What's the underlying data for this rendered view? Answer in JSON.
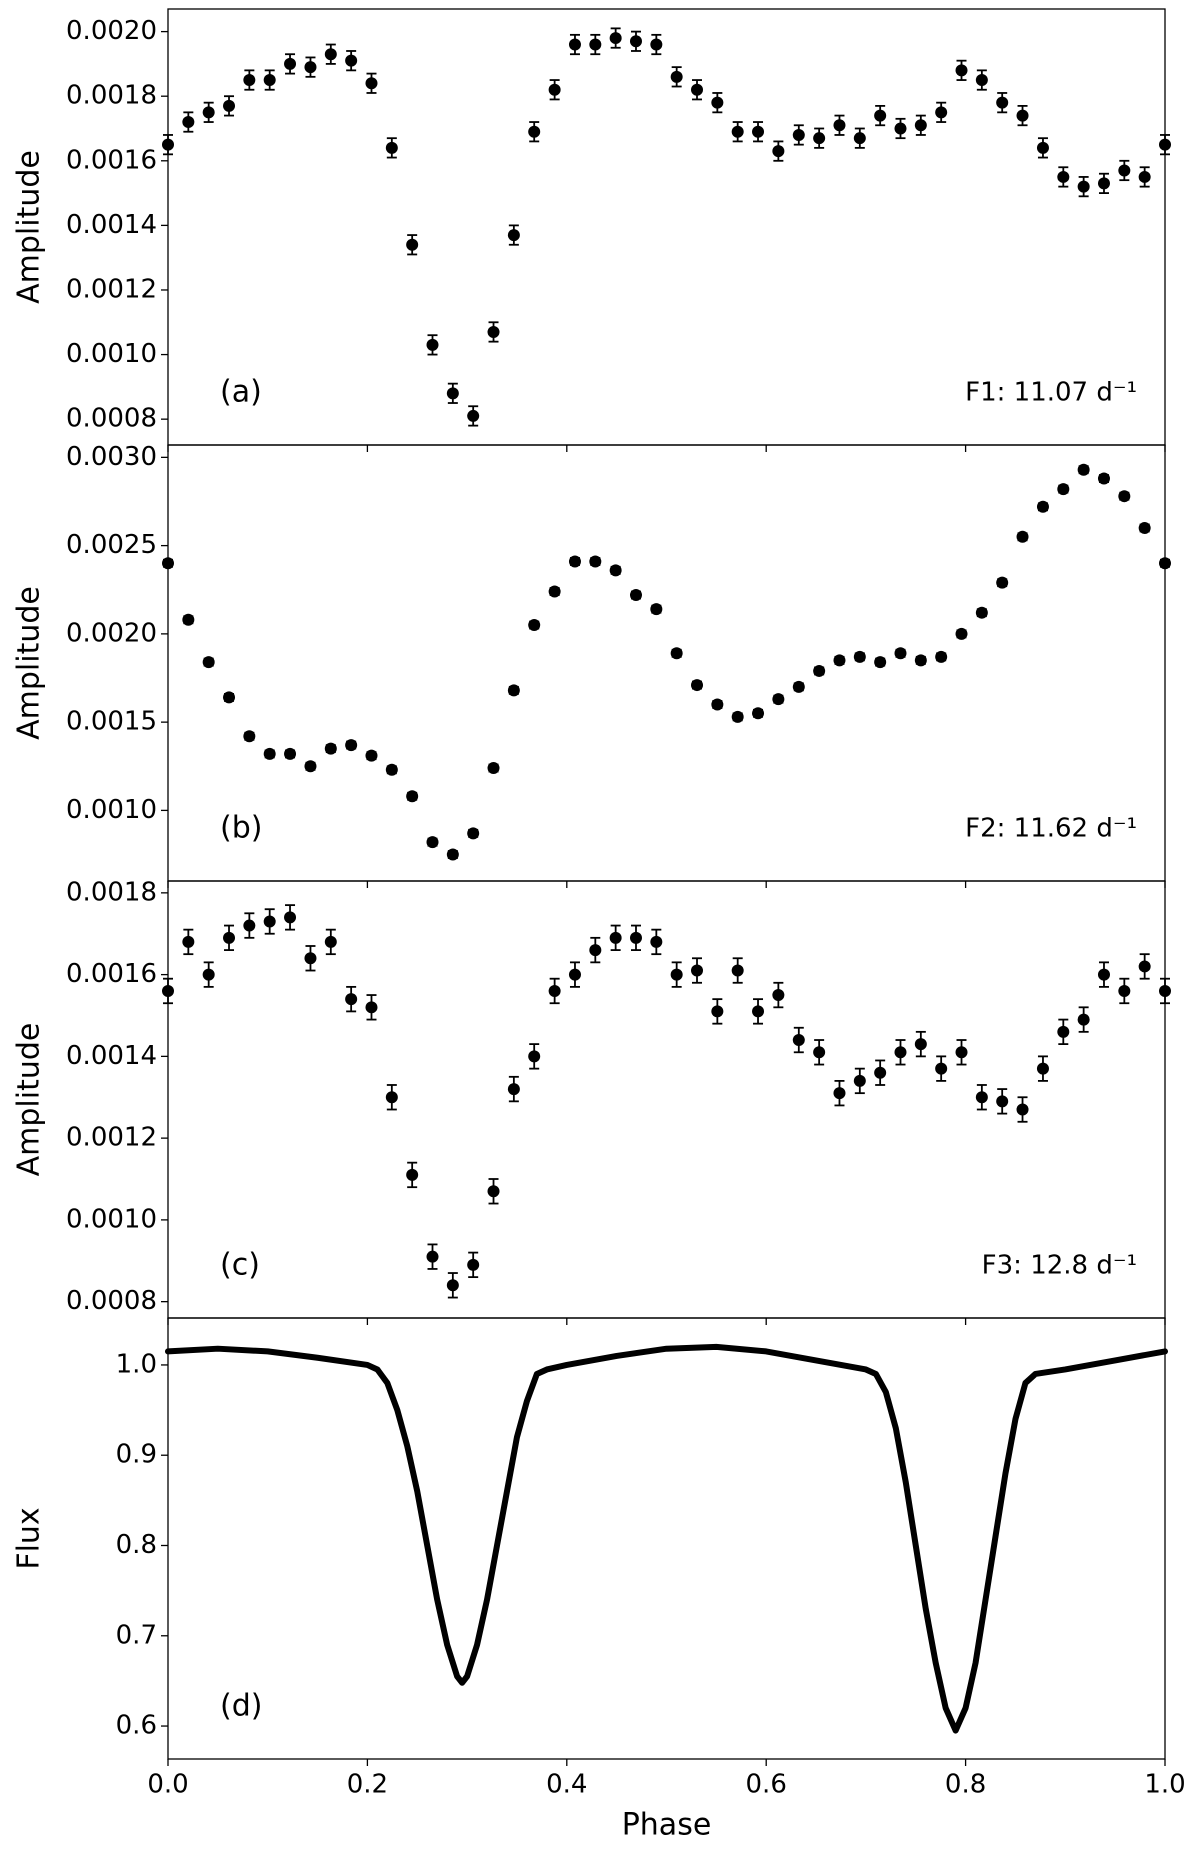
{
  "chart_data": [
    {
      "type": "scatter",
      "y_label": "Amplitude",
      "annotation": "(a)",
      "note": "F1: 11.07 d⁻¹",
      "color": "#000000",
      "x": [
        0,
        0.0204,
        0.0408,
        0.0612,
        0.0816,
        0.102,
        0.1224,
        0.1429,
        0.1633,
        0.1837,
        0.2041,
        0.2245,
        0.2449,
        0.2653,
        0.2857,
        0.3061,
        0.3265,
        0.3469,
        0.3673,
        0.3878,
        0.4082,
        0.4286,
        0.449,
        0.4694,
        0.4898,
        0.5102,
        0.5306,
        0.551,
        0.5714,
        0.5918,
        0.6122,
        0.6327,
        0.6531,
        0.6735,
        0.6939,
        0.7143,
        0.7347,
        0.7551,
        0.7755,
        0.7959,
        0.8163,
        0.8367,
        0.8571,
        0.8776,
        0.898,
        0.9184,
        0.9388,
        0.9592,
        0.9796,
        1
      ],
      "values": [
        0.00165,
        0.00172,
        0.00175,
        0.00177,
        0.00185,
        0.00185,
        0.0019,
        0.00189,
        0.00193,
        0.00191,
        0.00184,
        0.00164,
        0.00134,
        0.00103,
        0.00088,
        0.00081,
        0.00107,
        0.00137,
        0.00169,
        0.00182,
        0.00196,
        0.00196,
        0.00198,
        0.00197,
        0.00196,
        0.00186,
        0.00182,
        0.00178,
        0.00169,
        0.00169,
        0.00163,
        0.00168,
        0.00167,
        0.00171,
        0.00167,
        0.00174,
        0.0017,
        0.00171,
        0.00175,
        0.00188,
        0.00185,
        0.00178,
        0.00174,
        0.00164,
        0.00155,
        0.00152,
        0.00153,
        0.00157,
        0.00155,
        0.00165
      ],
      "error": 3e-05,
      "xlim": [
        0,
        1
      ],
      "xticks": [
        0,
        0.2,
        0.4,
        0.6,
        0.8,
        1
      ],
      "ylim": [
        0.00072,
        0.00207
      ],
      "yticks": [
        0.0008,
        {
          "value": 0.001,
          "label": "0.0010"
        },
        0.0012,
        0.0014,
        0.0016,
        0.0018,
        {
          "value": 0.002,
          "label": "0.0020"
        }
      ]
    },
    {
      "type": "scatter",
      "y_label": "Amplitude",
      "annotation": "(b)",
      "note": "F2: 11.62 d⁻¹",
      "color": "#000000",
      "x": [
        0,
        0.0204,
        0.0408,
        0.0612,
        0.0816,
        0.102,
        0.1224,
        0.1429,
        0.1633,
        0.1837,
        0.2041,
        0.2245,
        0.2449,
        0.2653,
        0.2857,
        0.3061,
        0.3265,
        0.3469,
        0.3673,
        0.3878,
        0.4082,
        0.4286,
        0.449,
        0.4694,
        0.4898,
        0.5102,
        0.5306,
        0.551,
        0.5714,
        0.5918,
        0.6122,
        0.6327,
        0.6531,
        0.6735,
        0.6939,
        0.7143,
        0.7347,
        0.7551,
        0.7755,
        0.7959,
        0.8163,
        0.8367,
        0.8571,
        0.8776,
        0.898,
        0.9184,
        0.9388,
        0.9592,
        0.9796,
        1
      ],
      "values": [
        0.0024,
        0.00208,
        0.00184,
        0.00164,
        0.00142,
        0.00132,
        0.00132,
        0.00125,
        0.00135,
        0.00137,
        0.00131,
        0.00123,
        0.00108,
        0.00082,
        0.00075,
        0.00087,
        0.00124,
        0.00168,
        0.00205,
        0.00224,
        0.00241,
        0.00241,
        0.00236,
        0.00222,
        0.00214,
        0.00189,
        0.00171,
        0.0016,
        0.00153,
        0.00155,
        0.00163,
        0.0017,
        0.00179,
        0.00185,
        0.00187,
        0.00184,
        0.00189,
        0.00185,
        0.00187,
        0.002,
        0.00212,
        0.00229,
        0.00255,
        0.00272,
        0.00282,
        0.00293,
        0.00288,
        0.00278,
        0.0026,
        0.0024
      ],
      "error": 2e-05,
      "xlim": [
        0,
        1
      ],
      "xticks": [
        0,
        0.2,
        0.4,
        0.6,
        0.8,
        1
      ],
      "ylim": [
        0.0006,
        0.00307
      ],
      "yticks": [
        {
          "value": 0.001,
          "label": "0.0010"
        },
        0.0015,
        {
          "value": 0.002,
          "label": "0.0020"
        },
        0.0025,
        {
          "value": 0.003,
          "label": "0.0030"
        }
      ]
    },
    {
      "type": "scatter",
      "y_label": "Amplitude",
      "annotation": "(c)",
      "note": "F3: 12.8 d⁻¹",
      "color": "#000000",
      "x": [
        0,
        0.0204,
        0.0408,
        0.0612,
        0.0816,
        0.102,
        0.1224,
        0.1429,
        0.1633,
        0.1837,
        0.2041,
        0.2245,
        0.2449,
        0.2653,
        0.2857,
        0.3061,
        0.3265,
        0.3469,
        0.3673,
        0.3878,
        0.4082,
        0.4286,
        0.449,
        0.4694,
        0.4898,
        0.5102,
        0.5306,
        0.551,
        0.5714,
        0.5918,
        0.6122,
        0.6327,
        0.6531,
        0.6735,
        0.6939,
        0.7143,
        0.7347,
        0.7551,
        0.7755,
        0.7959,
        0.8163,
        0.8367,
        0.8571,
        0.8776,
        0.898,
        0.9184,
        0.9388,
        0.9592,
        0.9796,
        1
      ],
      "values": [
        0.00156,
        0.00168,
        0.0016,
        0.00169,
        0.00172,
        0.00173,
        0.00174,
        0.00164,
        0.00168,
        0.00154,
        0.00152,
        0.0013,
        0.00111,
        0.00091,
        0.00084,
        0.00089,
        0.00107,
        0.00132,
        0.0014,
        0.00156,
        0.0016,
        0.00166,
        0.00169,
        0.00169,
        0.00168,
        0.0016,
        0.00161,
        0.00151,
        0.00161,
        0.00151,
        0.00155,
        0.00144,
        0.00141,
        0.00131,
        0.00134,
        0.00136,
        0.00141,
        0.00143,
        0.00137,
        0.00141,
        0.0013,
        0.00129,
        0.00127,
        0.00137,
        0.00146,
        0.00149,
        0.0016,
        0.00156,
        0.00162,
        0.00156
      ],
      "error": 3e-05,
      "xlim": [
        0,
        1
      ],
      "xticks": [
        0,
        0.2,
        0.4,
        0.6,
        0.8,
        1
      ],
      "ylim": [
        0.00076,
        0.001829
      ],
      "yticks": [
        0.0008,
        {
          "value": 0.001,
          "label": "0.0010"
        },
        0.0012,
        0.0014,
        0.0016,
        0.0018
      ]
    },
    {
      "type": "line",
      "y_label": "Flux",
      "x_label": "Phase",
      "annotation": "(d)",
      "color": "#000000",
      "x": [
        0,
        0.05,
        0.1,
        0.15,
        0.2,
        0.21,
        0.22,
        0.23,
        0.24,
        0.25,
        0.26,
        0.27,
        0.28,
        0.29,
        0.295,
        0.3,
        0.31,
        0.32,
        0.33,
        0.34,
        0.35,
        0.36,
        0.37,
        0.38,
        0.4,
        0.45,
        0.5,
        0.55,
        0.6,
        0.65,
        0.7,
        0.71,
        0.72,
        0.73,
        0.74,
        0.75,
        0.76,
        0.77,
        0.78,
        0.79,
        0.8,
        0.81,
        0.82,
        0.83,
        0.84,
        0.85,
        0.86,
        0.87,
        0.9,
        0.95,
        1
      ],
      "values": [
        1.015,
        1.018,
        1.015,
        1.008,
        1.0,
        0.995,
        0.98,
        0.95,
        0.91,
        0.86,
        0.8,
        0.74,
        0.69,
        0.655,
        0.648,
        0.655,
        0.69,
        0.74,
        0.8,
        0.86,
        0.92,
        0.96,
        0.99,
        0.995,
        1.0,
        1.01,
        1.018,
        1.02,
        1.015,
        1.005,
        0.995,
        0.99,
        0.97,
        0.93,
        0.87,
        0.8,
        0.73,
        0.67,
        0.62,
        0.595,
        0.62,
        0.67,
        0.74,
        0.81,
        0.88,
        0.94,
        0.98,
        0.99,
        0.995,
        1.005,
        1.015
      ],
      "xlim": [
        0,
        1
      ],
      "xticks": [
        {
          "value": 0,
          "label": "0.0"
        },
        0.2,
        0.4,
        0.6,
        0.8,
        {
          "value": 1,
          "label": "1.0"
        }
      ],
      "ylim": [
        0.5635,
        1.052
      ],
      "yticks": [
        0.6,
        0.7,
        0.8,
        0.9,
        {
          "value": 1,
          "label": "1.0"
        }
      ]
    }
  ]
}
